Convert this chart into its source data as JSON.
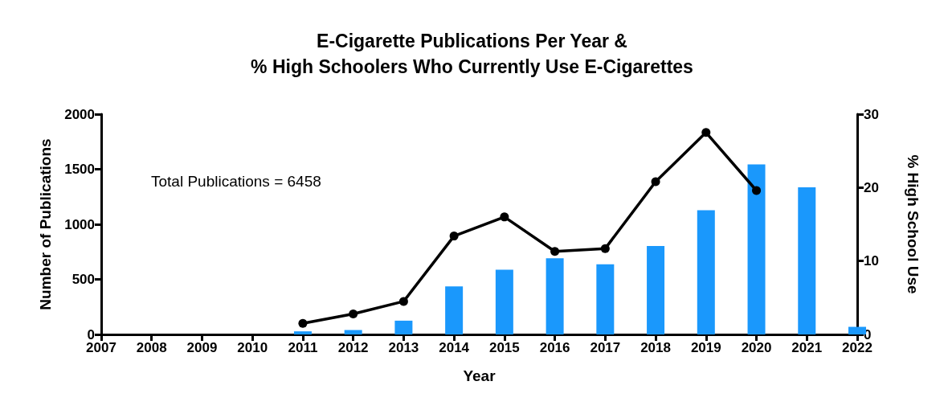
{
  "chart_data": {
    "type": "bar",
    "title": "E-Cigarette Publications Per Year &\n% High Schoolers Who Currently Use E-Cigarettes",
    "xlabel": "Year",
    "ylabel": "Number of Publications",
    "y2label": "% High School Use",
    "x": [
      2011,
      2012,
      2013,
      2014,
      2015,
      2016,
      2017,
      2018,
      2019,
      2020,
      2021,
      2022
    ],
    "series": [
      {
        "color": "#1a98fc",
        "values": [
          28,
          40,
          125,
          436,
          588,
          692,
          637,
          803,
          1128,
          1543,
          1336,
          69
        ]
      },
      {
        "type": "line",
        "axis": "y2",
        "color": "#000000",
        "values": [
          1.5,
          2.8,
          4.5,
          13.4,
          16.0,
          11.3,
          11.7,
          20.8,
          27.5,
          19.6,
          null,
          null
        ]
      }
    ],
    "xlim": [
      2007,
      2022
    ],
    "xticks": [
      2007,
      2008,
      2009,
      2010,
      2011,
      2012,
      2013,
      2014,
      2015,
      2016,
      2017,
      2018,
      2019,
      2020,
      2021,
      2022
    ],
    "ylim": [
      0,
      2000
    ],
    "yticks": [
      0,
      500,
      1000,
      1500,
      2000
    ],
    "y2lim": [
      0,
      30
    ],
    "y2ticks": [
      0,
      10,
      20,
      30
    ],
    "annotations": [
      "Total Publications = 6458"
    ],
    "grid": false,
    "marker": "circle",
    "line_style": "solid"
  }
}
